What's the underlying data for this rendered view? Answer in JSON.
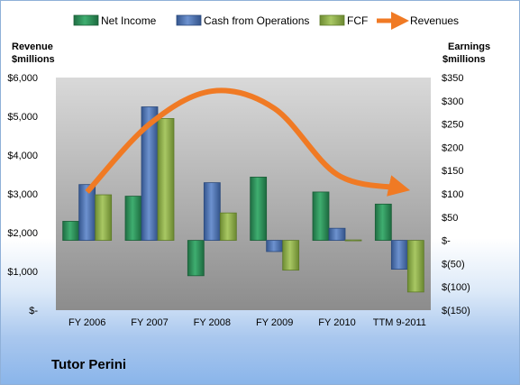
{
  "company": "Tutor Perini",
  "colors": {
    "net_income": "#2e8b57",
    "cash_from_operations": "#4a72b0",
    "fcf": "#8fae4a",
    "revenues": "#f07a24"
  },
  "chart_data": {
    "type": "bar",
    "categories": [
      "FY 2006",
      "FY 2007",
      "FY 2008",
      "FY 2009",
      "FY 2010",
      "TTM 9-2011"
    ],
    "series": [
      {
        "name": "Net Income",
        "axis": "right",
        "values": [
          41,
          95,
          -76,
          136,
          104,
          78
        ]
      },
      {
        "name": "Cash from Operations",
        "axis": "right",
        "values": [
          120,
          287,
          124,
          -24,
          26,
          -62
        ]
      },
      {
        "name": "FCF",
        "axis": "right",
        "values": [
          98,
          262,
          59,
          -64,
          0,
          -111
        ]
      },
      {
        "name": "Revenues",
        "axis": "left",
        "type": "line",
        "values": [
          3050,
          4800,
          5650,
          5200,
          3500,
          3150
        ]
      }
    ],
    "left_axis": {
      "title_line1": "Revenue",
      "title_line2": "$millions",
      "ylim": [
        0,
        6000
      ],
      "ticks": [
        "$-",
        "$1,000",
        "$2,000",
        "$3,000",
        "$4,000",
        "$5,000",
        "$6,000"
      ]
    },
    "right_axis": {
      "title_line1": "Earnings",
      "title_line2": "$millions",
      "ylim": [
        -150,
        350
      ],
      "ticks": [
        "$(150)",
        "$(100)",
        "$(50)",
        "$-",
        "$50",
        "$100",
        "$150",
        "$200",
        "$250",
        "$300",
        "$350"
      ]
    },
    "legend_position": "top",
    "grid": false
  }
}
